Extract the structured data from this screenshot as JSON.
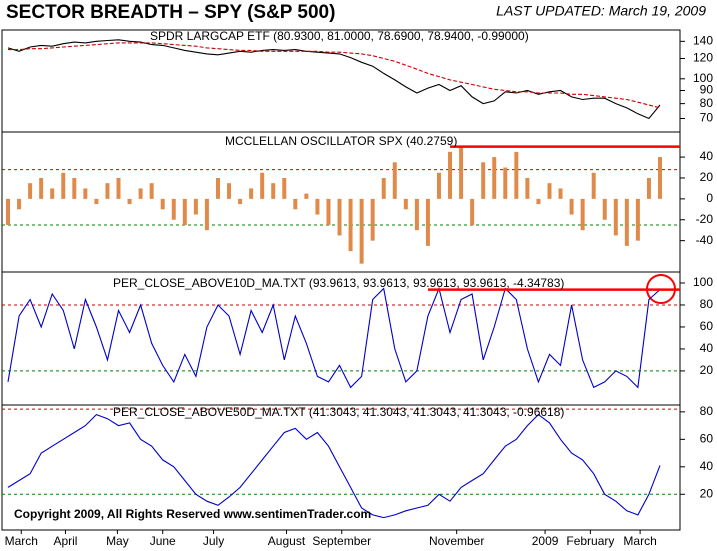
{
  "title": "SECTOR BREADTH – SPY (S&P 500)",
  "updated": "LAST UPDATED:  March 19, 2009",
  "chart_data": [
    {
      "type": "line",
      "title": "SPDR LARGCAP ETF (80.9300, 81.0000, 78.6900, 78.9400, -0.99000)",
      "log_scale": true,
      "ylim": [
        62,
        155
      ],
      "yticks": [
        140,
        120,
        100,
        90,
        80,
        70
      ],
      "series": [
        {
          "color": "#000000",
          "style": "solid",
          "values": [
            132,
            128,
            133,
            135,
            134,
            137,
            139,
            138,
            140,
            141,
            142,
            140,
            139,
            136,
            135,
            132,
            129,
            127,
            125,
            124,
            126,
            128,
            127,
            129,
            130,
            129,
            130,
            128,
            127,
            126,
            125,
            121,
            116,
            112,
            105,
            99,
            93,
            88,
            92,
            95,
            90,
            94,
            85,
            80,
            82,
            89,
            88,
            90,
            87,
            89,
            90,
            85,
            83,
            84,
            84,
            80,
            77,
            73,
            70,
            79
          ]
        },
        {
          "color": "#cc0000",
          "style": "dashed",
          "values": [
            130,
            130,
            131,
            131,
            132,
            133,
            134,
            135,
            136,
            137,
            138,
            138,
            138,
            138,
            137,
            136,
            135,
            134,
            132,
            131,
            130,
            129,
            129,
            128,
            128,
            128,
            128,
            128,
            128,
            127,
            127,
            126,
            125,
            123,
            120,
            117,
            113,
            109,
            105,
            102,
            99,
            97,
            95,
            93,
            91,
            90,
            89,
            89,
            88,
            88,
            88,
            87,
            87,
            86,
            85,
            84,
            83,
            81,
            79,
            77
          ]
        }
      ]
    },
    {
      "type": "bar",
      "title": "MCCLELLAN OSCILLATOR SPX (40.2759)",
      "color": "#e08a4a",
      "ylim": [
        -70,
        64
      ],
      "yticks": [
        40,
        20,
        0,
        -20,
        -40
      ],
      "reference_lines": [
        {
          "value": 28,
          "color": "#cc0000"
        },
        {
          "value": -25,
          "color": "#008000"
        }
      ],
      "highlight_line": {
        "value": 50,
        "from": 40,
        "color": "#ff0000"
      },
      "values": [
        -25,
        -10,
        15,
        20,
        10,
        25,
        20,
        10,
        -5,
        15,
        20,
        -5,
        10,
        15,
        -10,
        -20,
        -25,
        -15,
        -30,
        20,
        15,
        -5,
        10,
        25,
        15,
        20,
        -10,
        5,
        -15,
        -25,
        -35,
        -50,
        -62,
        -40,
        20,
        35,
        -10,
        -30,
        -45,
        25,
        45,
        50,
        -25,
        35,
        40,
        30,
        45,
        20,
        -5,
        15,
        10,
        -15,
        -30,
        25,
        -20,
        -35,
        -45,
        -40,
        20,
        40
      ]
    },
    {
      "type": "line",
      "title": "PER_CLOSE_ABOVE10D_MA.TXT (93.9613, 93.9613, 93.9613, 93.9613, -4.34783)",
      "ylim": [
        -11,
        110
      ],
      "yticks": [
        100,
        80,
        60,
        40,
        20
      ],
      "reference_lines": [
        {
          "value": 80,
          "color": "#cc0000"
        },
        {
          "value": 20,
          "color": "#008000"
        }
      ],
      "highlight_line": {
        "value": 94,
        "from": 38,
        "color": "#ff0000"
      },
      "series": [
        {
          "color": "#0000cc",
          "style": "solid",
          "values": [
            10,
            70,
            85,
            60,
            90,
            75,
            40,
            85,
            60,
            30,
            75,
            55,
            80,
            45,
            25,
            10,
            35,
            15,
            60,
            80,
            70,
            35,
            75,
            55,
            80,
            30,
            70,
            45,
            15,
            10,
            25,
            5,
            15,
            85,
            95,
            40,
            10,
            20,
            70,
            95,
            55,
            85,
            90,
            30,
            60,
            95,
            85,
            40,
            10,
            35,
            25,
            80,
            30,
            5,
            10,
            20,
            15,
            5,
            85,
            94
          ]
        }
      ]
    },
    {
      "type": "line",
      "title": "PER_CLOSE_ABOVE50D_MA.TXT (41.3043, 41.3043, 41.3043, 41.3043, -0.96618)",
      "annotation": "Copyright 2009, All Rights Reserved  www.sentimenTrader.com",
      "ylim": [
        -6,
        85
      ],
      "yticks": [
        80,
        60,
        40,
        20
      ],
      "reference_lines": [
        {
          "value": 82,
          "color": "#cc0000"
        },
        {
          "value": 20,
          "color": "#008000"
        }
      ],
      "series": [
        {
          "color": "#0000cc",
          "style": "solid",
          "values": [
            25,
            30,
            35,
            50,
            55,
            60,
            65,
            70,
            78,
            75,
            70,
            72,
            60,
            55,
            45,
            40,
            30,
            20,
            15,
            12,
            18,
            25,
            35,
            45,
            55,
            65,
            68,
            60,
            65,
            55,
            40,
            25,
            10,
            5,
            3,
            5,
            8,
            10,
            12,
            20,
            15,
            25,
            30,
            35,
            45,
            55,
            60,
            70,
            78,
            72,
            60,
            50,
            45,
            35,
            20,
            15,
            8,
            5,
            20,
            41
          ]
        }
      ],
      "xlim": [
        0,
        59
      ],
      "xticks": [
        {
          "value": 1.2,
          "label": "March"
        },
        {
          "value": 5.2,
          "label": "April"
        },
        {
          "value": 9.9,
          "label": "May"
        },
        {
          "value": 14,
          "label": "June"
        },
        {
          "value": 18.6,
          "label": "July"
        },
        {
          "value": 25.2,
          "label": "August"
        },
        {
          "value": 30.2,
          "label": "September"
        },
        {
          "value": 40.6,
          "label": "November"
        },
        {
          "value": 48.6,
          "label": "2009"
        },
        {
          "value": 52.7,
          "label": "February"
        },
        {
          "value": 57.2,
          "label": "March"
        }
      ]
    }
  ]
}
